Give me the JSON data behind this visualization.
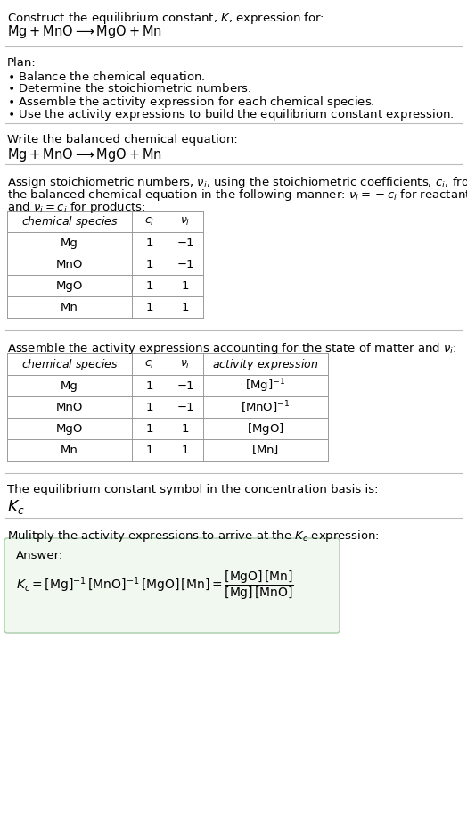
{
  "bg_color": "#ffffff",
  "text_color": "#000000",
  "divider_color": "#bbbbbb",
  "font_size": 9.5,
  "table1_headers": [
    "chemical species",
    "c_i",
    "v_i"
  ],
  "table1_rows": [
    [
      "Mg",
      "1",
      "−1"
    ],
    [
      "MnO",
      "1",
      "−1"
    ],
    [
      "MgO",
      "1",
      "1"
    ],
    [
      "Mn",
      "1",
      "1"
    ]
  ],
  "table2_headers": [
    "chemical species",
    "c_i",
    "v_i",
    "activity expression"
  ],
  "table2_rows": [
    [
      "Mg",
      "1",
      "−1",
      "[Mg]^{-1}"
    ],
    [
      "MnO",
      "1",
      "−1",
      "[MnO]^{-1}"
    ],
    [
      "MgO",
      "1",
      "1",
      "[MgO]"
    ],
    [
      "Mn",
      "1",
      "1",
      "[Mn]"
    ]
  ]
}
